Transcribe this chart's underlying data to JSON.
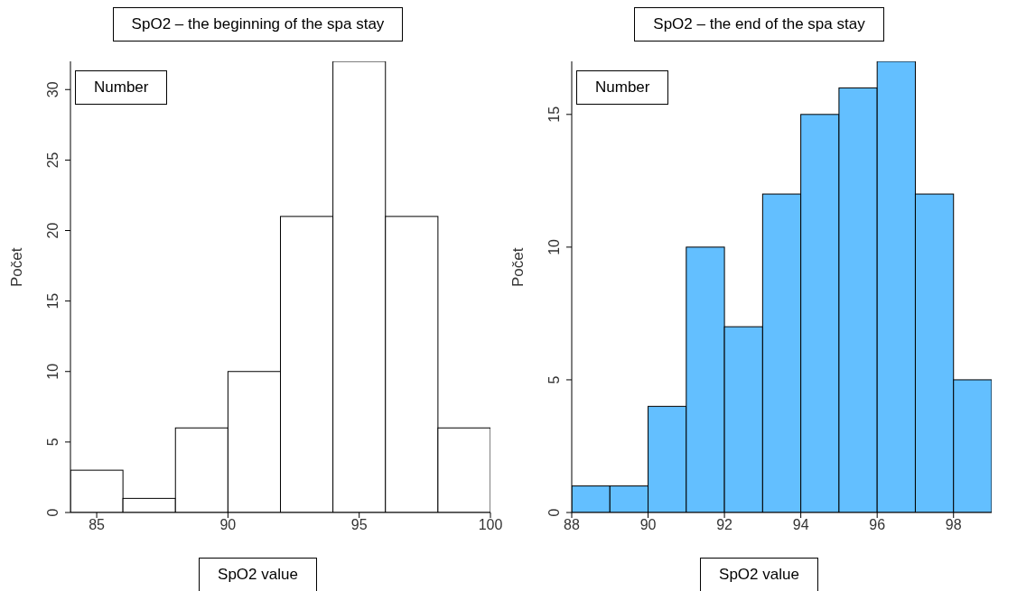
{
  "chart_data": [
    {
      "type": "histogram",
      "title": "SpO2 – the beginning of the spa stay",
      "xlabel": "SpO2 value",
      "ylabel": "Počet",
      "annotations": [
        "Number"
      ],
      "bins": [
        84,
        86,
        88,
        90,
        92,
        94,
        96,
        98,
        100
      ],
      "values": [
        3,
        1,
        6,
        10,
        21,
        32,
        21,
        6
      ],
      "color": "#ffffff",
      "xlim": [
        84,
        100
      ],
      "xticks": [
        85,
        90,
        95,
        100
      ],
      "ylim": [
        0,
        32
      ],
      "yticks": [
        0,
        5,
        10,
        15,
        20,
        25,
        30
      ]
    },
    {
      "type": "histogram",
      "title": "SpO2 – the end of the spa stay",
      "xlabel": "SpO2 value",
      "ylabel": "Počet",
      "annotations": [
        "Number"
      ],
      "bins": [
        88,
        89,
        90,
        91,
        92,
        93,
        94,
        95,
        96,
        97,
        98,
        99
      ],
      "values": [
        1,
        1,
        4,
        10,
        7,
        12,
        15,
        16,
        17,
        12,
        5
      ],
      "color": "#63bfff",
      "xlim": [
        88,
        99
      ],
      "xticks": [
        88,
        90,
        92,
        94,
        96,
        98
      ],
      "ylim": [
        0,
        17
      ],
      "yticks": [
        0,
        5,
        10,
        15
      ]
    }
  ]
}
